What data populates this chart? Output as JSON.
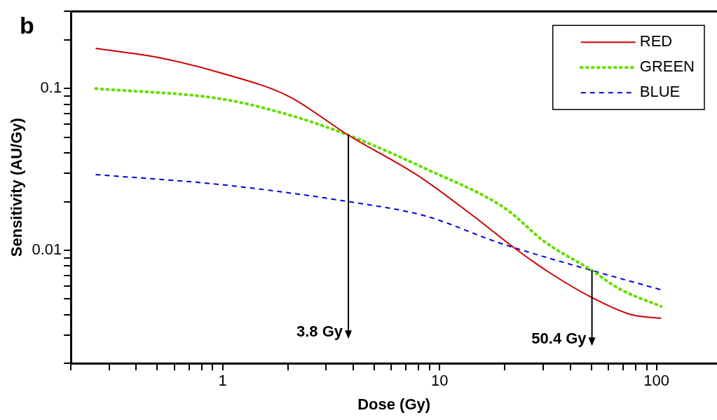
{
  "chart_data": {
    "type": "line",
    "title": "b",
    "xlabel": "Dose (Gy)",
    "ylabel": "Sensitivity (AU/Gy)",
    "log": "xy",
    "grid": false,
    "legend": "top right",
    "marker": "none",
    "xlim": [
      0.2,
      190
    ],
    "ylim": [
      0.002,
      0.3
    ],
    "xticks": [
      {
        "value": 0.2,
        "label": null
      },
      {
        "value": 0.3,
        "label": null
      },
      {
        "value": 0.4,
        "label": null
      },
      {
        "value": 0.5,
        "label": null
      },
      {
        "value": 0.6,
        "label": null
      },
      {
        "value": 0.7,
        "label": null
      },
      {
        "value": 0.8,
        "label": null
      },
      {
        "value": 0.9,
        "label": null
      },
      1,
      {
        "value": 2,
        "label": null
      },
      {
        "value": 3,
        "label": null
      },
      {
        "value": 4,
        "label": null
      },
      {
        "value": 5,
        "label": null
      },
      {
        "value": 6,
        "label": null
      },
      {
        "value": 7,
        "label": null
      },
      {
        "value": 8,
        "label": null
      },
      {
        "value": 9,
        "label": null
      },
      10,
      {
        "value": 20,
        "label": null
      },
      {
        "value": 30,
        "label": null
      },
      {
        "value": 40,
        "label": null
      },
      {
        "value": 50,
        "label": null
      },
      {
        "value": 60,
        "label": null
      },
      {
        "value": 70,
        "label": null
      },
      {
        "value": 80,
        "label": null
      },
      {
        "value": 90,
        "label": null
      },
      100
    ],
    "yticks": [
      {
        "value": 0.002,
        "label": null
      },
      {
        "value": 0.003,
        "label": null
      },
      {
        "value": 0.004,
        "label": null
      },
      {
        "value": 0.005,
        "label": null
      },
      {
        "value": 0.006,
        "label": null
      },
      {
        "value": 0.007,
        "label": null
      },
      {
        "value": 0.008,
        "label": null
      },
      {
        "value": 0.009,
        "label": null
      },
      0.01,
      {
        "value": 0.02,
        "label": null
      },
      {
        "value": 0.03,
        "label": null
      },
      {
        "value": 0.04,
        "label": null
      },
      {
        "value": 0.05,
        "label": null
      },
      {
        "value": 0.06,
        "label": null
      },
      {
        "value": 0.07,
        "label": null
      },
      {
        "value": 0.08,
        "label": null
      },
      {
        "value": 0.09,
        "label": null
      },
      0.1,
      {
        "value": 0.2,
        "label": null
      },
      {
        "value": 0.3,
        "label": null
      }
    ],
    "series": [
      {
        "name": "RED",
        "color": "#cc0000",
        "line_style": "solid",
        "x": [
          0.26,
          0.5,
          1,
          2,
          3.8,
          8,
          14.3,
          22.2,
          32,
          50.4,
          76.5,
          105
        ],
        "values": [
          0.177,
          0.156,
          0.124,
          0.09,
          0.0515,
          0.0288,
          0.0163,
          0.0103,
          0.0073,
          0.0051,
          0.004,
          0.0038
        ]
      },
      {
        "name": "GREEN",
        "color": "#66dd00",
        "line_style": "dotted",
        "x": [
          0.26,
          1,
          2,
          3.8,
          8.6,
          20,
          30.5,
          50.4,
          67,
          105
        ],
        "values": [
          0.1,
          0.086,
          0.069,
          0.0515,
          0.032,
          0.0182,
          0.0113,
          0.0075,
          0.0058,
          0.0045
        ]
      },
      {
        "name": "BLUE",
        "color": "#0000dd",
        "line_style": "dashed",
        "x": [
          0.26,
          1,
          3.8,
          8.6,
          18.9,
          50.4,
          105
        ],
        "values": [
          0.0294,
          0.0254,
          0.02,
          0.0163,
          0.0111,
          0.0075,
          0.0057
        ]
      }
    ],
    "annotations": [
      {
        "text": "3.8 Gy",
        "x": 3.8,
        "y": 0.0515
      },
      {
        "text": "50.4 Gy",
        "x": 50.4,
        "y": 0.0075
      }
    ]
  }
}
